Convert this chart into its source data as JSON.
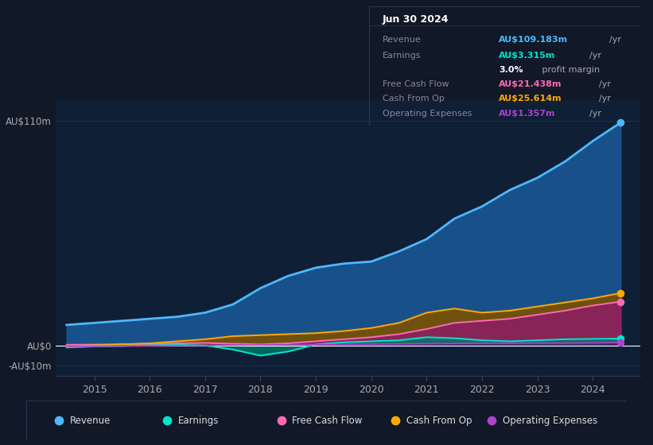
{
  "bg_color": "#111827",
  "plot_bg_color": "#0f1f35",
  "grid_color": "#1e3a5a",
  "years": [
    2014.5,
    2015.0,
    2015.5,
    2016.0,
    2016.5,
    2017.0,
    2017.5,
    2018.0,
    2018.5,
    2019.0,
    2019.5,
    2020.0,
    2020.5,
    2021.0,
    2021.5,
    2022.0,
    2022.5,
    2023.0,
    2023.5,
    2024.0,
    2024.5
  ],
  "revenue": [
    10,
    11,
    12,
    13,
    14,
    16,
    20,
    28,
    34,
    38,
    40,
    41,
    46,
    52,
    62,
    68,
    76,
    82,
    90,
    100,
    109
  ],
  "earnings": [
    -1,
    -0.5,
    -0.3,
    0.2,
    0.3,
    0.0,
    -2,
    -5,
    -3,
    0.5,
    1.5,
    2.0,
    2.5,
    4.0,
    3.5,
    2.5,
    2.0,
    2.5,
    3.0,
    3.2,
    3.3
  ],
  "free_cash_flow": [
    0.3,
    0.4,
    0.6,
    0.8,
    1.0,
    1.2,
    0.8,
    0.5,
    1.0,
    2.0,
    3.0,
    4.0,
    5.5,
    8.0,
    11.0,
    12.0,
    13.0,
    15.0,
    17.0,
    19.5,
    21.4
  ],
  "cash_from_op": [
    -0.5,
    0.0,
    0.5,
    1.0,
    2.0,
    3.0,
    4.5,
    5.0,
    5.5,
    6.0,
    7.0,
    8.5,
    11.0,
    16.0,
    18.0,
    16.0,
    17.0,
    19.0,
    21.0,
    23.0,
    25.6
  ],
  "op_expenses": [
    -0.5,
    -0.4,
    -0.3,
    -0.2,
    -0.1,
    0.0,
    0.1,
    0.2,
    0.3,
    0.4,
    0.5,
    0.6,
    0.7,
    0.8,
    0.9,
    1.0,
    1.0,
    1.1,
    1.1,
    1.2,
    1.4
  ],
  "revenue_color": "#4db8ff",
  "earnings_color": "#00e5cc",
  "fcf_color": "#ff69b4",
  "cop_color": "#ffaa00",
  "opex_color": "#aa44cc",
  "revenue_fill": "#1a5a9a",
  "earnings_fill": "#007a6a",
  "fcf_fill": "#8b2060",
  "cop_fill": "#7a5000",
  "opex_fill": "#4a2070",
  "ylim": [
    -15,
    120
  ],
  "ytick_vals": [
    -10,
    0,
    110
  ],
  "ytick_labels": [
    "-AU$10m",
    "AU$0",
    "AU$110m"
  ],
  "xlim": [
    2014.3,
    2024.85
  ],
  "xticks": [
    2015,
    2016,
    2017,
    2018,
    2019,
    2020,
    2021,
    2022,
    2023,
    2024
  ],
  "legend_items": [
    "Revenue",
    "Earnings",
    "Free Cash Flow",
    "Cash From Op",
    "Operating Expenses"
  ],
  "legend_colors": [
    "#4db8ff",
    "#00e5cc",
    "#ff69b4",
    "#ffaa00",
    "#aa44cc"
  ],
  "infobox": {
    "date": "Jun 30 2024",
    "rows": [
      {
        "label": "Revenue",
        "value": "AU$109.183m",
        "unit": "/yr",
        "vcolor": "#4db8ff",
        "extra": null
      },
      {
        "label": "Earnings",
        "value": "AU$3.315m",
        "unit": "/yr",
        "vcolor": "#00e5cc",
        "extra": null
      },
      {
        "label": "",
        "value": "3.0%",
        "unit": " profit margin",
        "vcolor": "#ffffff",
        "extra": "bold_pct"
      },
      {
        "label": "Free Cash Flow",
        "value": "AU$21.438m",
        "unit": "/yr",
        "vcolor": "#ff69b4",
        "extra": null
      },
      {
        "label": "Cash From Op",
        "value": "AU$25.614m",
        "unit": "/yr",
        "vcolor": "#ffaa00",
        "extra": null
      },
      {
        "label": "Operating Expenses",
        "value": "AU$1.357m",
        "unit": "/yr",
        "vcolor": "#aa44cc",
        "extra": null
      }
    ]
  }
}
